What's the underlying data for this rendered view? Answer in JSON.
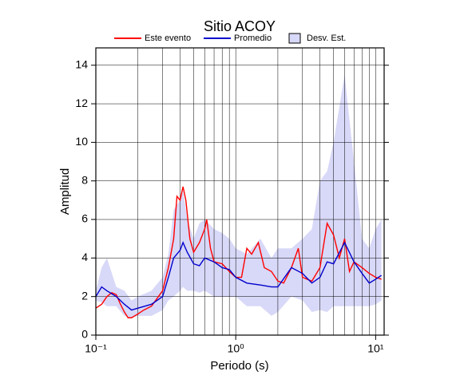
{
  "chart_data": {
    "type": "line",
    "title": "Sitio ACOY",
    "xlabel": "Periodo (s)",
    "ylabel": "Amplitud",
    "xscale": "log",
    "xlim": [
      0.1,
      11.5
    ],
    "ylim": [
      0,
      14.9
    ],
    "xticks": [
      {
        "value": 0.1,
        "label": "10⁻¹"
      },
      {
        "value": 1,
        "label": "10⁰"
      },
      {
        "value": 10,
        "label": "10¹"
      }
    ],
    "xminor": [
      0.2,
      0.3,
      0.4,
      0.5,
      0.6,
      0.7,
      0.8,
      0.9,
      2,
      3,
      4,
      5,
      6,
      7,
      8,
      9
    ],
    "yticks": [
      0,
      2,
      4,
      6,
      8,
      10,
      12,
      14
    ],
    "grid": true,
    "series": [
      {
        "name": "Este evento",
        "color": "#ff0000",
        "x": [
          0.1,
          0.11,
          0.12,
          0.13,
          0.14,
          0.15,
          0.16,
          0.17,
          0.18,
          0.2,
          0.22,
          0.25,
          0.28,
          0.3,
          0.33,
          0.36,
          0.38,
          0.4,
          0.42,
          0.44,
          0.47,
          0.5,
          0.55,
          0.6,
          0.62,
          0.66,
          0.7,
          0.8,
          0.9,
          1.0,
          1.1,
          1.2,
          1.3,
          1.45,
          1.6,
          1.8,
          2.0,
          2.2,
          2.5,
          2.8,
          3.0,
          3.5,
          4.0,
          4.5,
          5.0,
          5.5,
          6.0,
          6.5,
          7.0,
          8.0,
          9.0,
          10,
          11
        ],
        "values": [
          1.4,
          1.6,
          2.0,
          2.2,
          2.1,
          1.6,
          1.2,
          0.9,
          0.9,
          1.1,
          1.3,
          1.5,
          2.0,
          2.3,
          3.5,
          5.0,
          7.2,
          7.0,
          7.7,
          7.0,
          5.0,
          4.3,
          4.8,
          5.5,
          6.0,
          4.5,
          3.8,
          3.7,
          3.3,
          3.0,
          3.0,
          4.5,
          4.2,
          4.8,
          3.5,
          3.3,
          2.8,
          2.7,
          3.5,
          4.5,
          3.0,
          2.8,
          3.5,
          5.8,
          5.2,
          4.0,
          5.0,
          3.3,
          3.8,
          3.5,
          3.2,
          3.0,
          2.9
        ]
      },
      {
        "name": "Promedio",
        "color": "#0000cc",
        "x": [
          0.1,
          0.11,
          0.12,
          0.14,
          0.16,
          0.18,
          0.2,
          0.25,
          0.3,
          0.33,
          0.36,
          0.4,
          0.42,
          0.45,
          0.5,
          0.55,
          0.6,
          0.7,
          0.8,
          0.9,
          1.0,
          1.2,
          1.5,
          1.8,
          2.0,
          2.5,
          3.0,
          3.5,
          4.0,
          4.5,
          5.0,
          6.0,
          7.0,
          8.0,
          9.0,
          10,
          11
        ],
        "values": [
          2.0,
          2.5,
          2.3,
          2.0,
          1.6,
          1.3,
          1.4,
          1.6,
          2.0,
          3.0,
          4.0,
          4.4,
          4.8,
          4.3,
          3.7,
          3.6,
          4.0,
          3.8,
          3.5,
          3.4,
          3.0,
          2.7,
          2.6,
          2.5,
          2.5,
          3.5,
          3.2,
          2.7,
          3.0,
          3.8,
          3.7,
          4.8,
          3.8,
          3.2,
          2.7,
          2.9,
          3.1
        ]
      }
    ],
    "band": {
      "name": "Desv. Est.",
      "color": "#d8d8f8",
      "x": [
        0.1,
        0.11,
        0.12,
        0.14,
        0.16,
        0.18,
        0.2,
        0.25,
        0.3,
        0.33,
        0.36,
        0.4,
        0.42,
        0.45,
        0.5,
        0.55,
        0.6,
        0.7,
        0.8,
        0.9,
        1.0,
        1.2,
        1.5,
        1.8,
        2.0,
        2.5,
        3.0,
        3.5,
        4.0,
        4.5,
        5.0,
        6.0,
        7.0,
        8.0,
        9.0,
        10,
        11
      ],
      "upper": [
        2.3,
        3.5,
        4.0,
        2.5,
        2.3,
        1.8,
        2.0,
        2.3,
        3.0,
        4.2,
        6.5,
        7.0,
        7.5,
        6.0,
        5.0,
        5.8,
        6.0,
        5.5,
        5.3,
        5.0,
        4.5,
        4.2,
        5.0,
        4.0,
        4.5,
        4.5,
        5.0,
        5.5,
        8.0,
        8.5,
        10,
        13.5,
        9.0,
        5.0,
        4.5,
        5.5,
        6.0
      ],
      "lower": [
        1.8,
        1.7,
        1.5,
        1.5,
        1.0,
        0.9,
        1.0,
        1.0,
        1.3,
        1.8,
        2.0,
        2.3,
        2.5,
        2.3,
        2.3,
        2.2,
        2.3,
        2.0,
        2.0,
        2.0,
        2.0,
        1.5,
        1.5,
        1.0,
        1.2,
        2.0,
        1.8,
        1.2,
        1.3,
        1.2,
        1.5,
        1.5,
        1.5,
        1.5,
        1.5,
        1.6,
        1.8
      ]
    }
  }
}
